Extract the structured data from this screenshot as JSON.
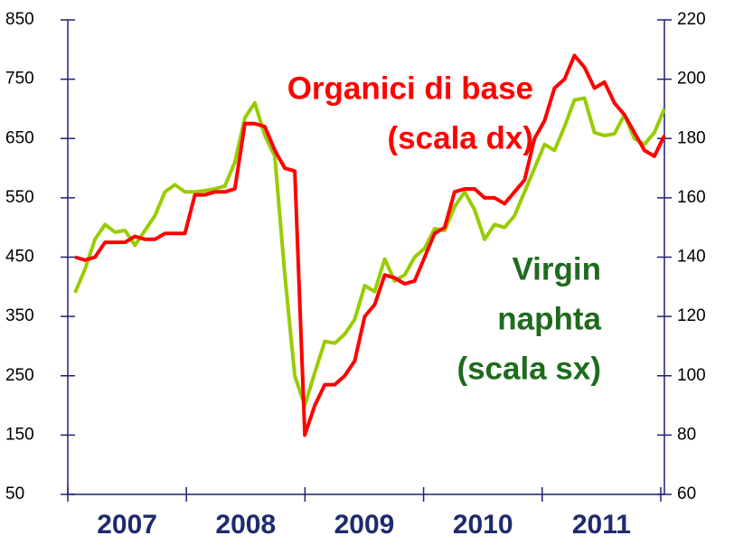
{
  "chart_data": {
    "type": "line",
    "categories": [
      null,
      null,
      null,
      null,
      null,
      null,
      null,
      null,
      null,
      null,
      null,
      null,
      null,
      null,
      null,
      null,
      null,
      null,
      null,
      null,
      null,
      null,
      null,
      null,
      null,
      null,
      null,
      null,
      null,
      null,
      null,
      null,
      null,
      null,
      null,
      null,
      null,
      null,
      null,
      null,
      null,
      null,
      null,
      null,
      null,
      null,
      null,
      null,
      null,
      null,
      null,
      null,
      null,
      null,
      null,
      null,
      null,
      null,
      null,
      null
    ],
    "year_labels": [
      "2007",
      "2008",
      "2009",
      "2010",
      "2011"
    ],
    "series": [
      {
        "name": "Virgin naphta",
        "color": "#99cc00",
        "axis": "y",
        "values": [
          390,
          430,
          480,
          505,
          492,
          495,
          470,
          495,
          520,
          560,
          572,
          560,
          560,
          562,
          565,
          570,
          610,
          685,
          710,
          655,
          620,
          420,
          250,
          200,
          255,
          308,
          305,
          320,
          345,
          402,
          392,
          447,
          410,
          420,
          450,
          465,
          498,
          495,
          535,
          560,
          530,
          480,
          505,
          500,
          520,
          560,
          600,
          640,
          630,
          670,
          715,
          718,
          660,
          655,
          658,
          690,
          650,
          640,
          660,
          700
        ]
      },
      {
        "name": "Organici di base",
        "color": "#ff0000",
        "axis": "y2",
        "values": [
          140,
          139,
          140,
          145,
          145,
          145,
          147,
          146,
          146,
          148,
          148,
          148,
          161,
          161,
          162,
          162,
          163,
          185,
          185,
          184,
          176,
          170,
          169,
          80,
          90,
          97,
          97,
          100,
          105,
          120,
          124,
          134,
          133,
          131,
          132,
          140,
          148,
          150,
          162,
          163,
          163,
          160,
          160,
          158,
          162,
          166,
          180,
          186,
          197,
          200,
          208,
          204,
          197,
          199,
          192,
          188,
          182,
          176,
          174,
          181
        ]
      }
    ],
    "annotations": [
      {
        "lines": [
          "Organici di base",
          "(scala dx)"
        ],
        "color": "#ff0000"
      },
      {
        "lines": [
          "Virgin",
          "naphta",
          "(scala sx)"
        ],
        "color": "#1e6b1e"
      }
    ],
    "ylim": [
      50,
      850
    ],
    "yticks": [
      50,
      150,
      250,
      350,
      450,
      550,
      650,
      750,
      850
    ],
    "y2lim": [
      60,
      220
    ],
    "y2ticks": [
      60,
      80,
      100,
      120,
      140,
      160,
      180,
      200,
      220
    ]
  }
}
